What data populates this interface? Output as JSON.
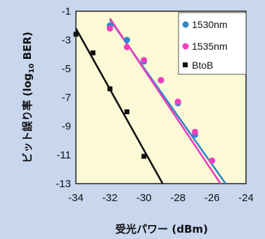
{
  "chart_data": {
    "type": "scatter",
    "xlabel": "受光パワー (dBm)",
    "ylabel_main": "ビット誤り率 (log",
    "ylabel_sub": "10",
    "ylabel_tail": " BER)",
    "xlim": [
      -34,
      -24
    ],
    "ylim": [
      -13,
      -1
    ],
    "xticks": [
      -34,
      -32,
      -30,
      -28,
      -26,
      -24
    ],
    "yticks": [
      -1,
      -3,
      -5,
      -7,
      -9,
      -11,
      -13
    ],
    "grid": false,
    "legend_position": "top-right",
    "series": [
      {
        "name": "1530nm",
        "marker": "circle",
        "color": "#2e86c8",
        "points": [
          [
            -32,
            -2.0
          ],
          [
            -31,
            -3.0
          ],
          [
            -30,
            -4.5
          ],
          [
            -29,
            -5.8
          ],
          [
            -28,
            -7.4
          ],
          [
            -27,
            -9.6
          ],
          [
            -26,
            -11.4
          ]
        ],
        "fit": [
          [
            -32,
            -1.6
          ],
          [
            -25.2,
            -13
          ]
        ]
      },
      {
        "name": "1535nm",
        "marker": "circle",
        "color": "#ee3fbf",
        "points": [
          [
            -32,
            -2.2
          ],
          [
            -31,
            -3.5
          ],
          [
            -30,
            -4.4
          ],
          [
            -29,
            -5.8
          ],
          [
            -28,
            -7.3
          ],
          [
            -27,
            -9.4
          ],
          [
            -26,
            -11.4
          ]
        ],
        "fit": [
          [
            -32,
            -1.5
          ],
          [
            -25.5,
            -13
          ]
        ]
      },
      {
        "name": "BtoB",
        "marker": "square",
        "color": "#111111",
        "points": [
          [
            -34,
            -2.6
          ],
          [
            -33,
            -3.9
          ],
          [
            -32,
            -6.4
          ],
          [
            -31,
            -8.0
          ],
          [
            -30,
            -11.1
          ]
        ],
        "fit": [
          [
            -34,
            -2.2
          ],
          [
            -28.9,
            -13
          ]
        ]
      }
    ]
  }
}
